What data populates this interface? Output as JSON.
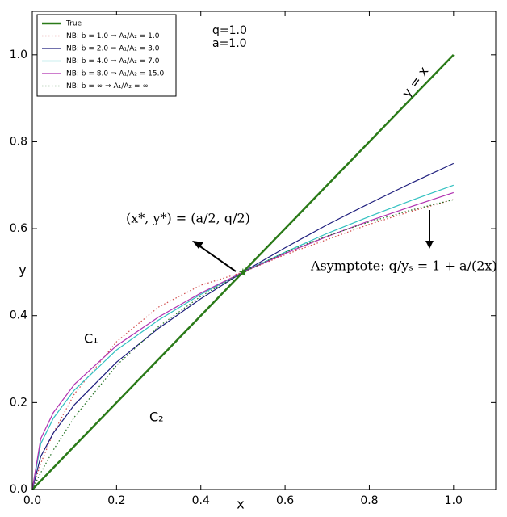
{
  "chart_data": {
    "type": "line",
    "x": [
      0,
      0.02,
      0.05,
      0.1,
      0.2,
      0.3,
      0.4,
      0.5,
      0.6,
      0.7,
      0.8,
      0.9,
      1.0
    ],
    "series": [
      {
        "name": "True",
        "color": "#2a7a18",
        "linestyle": "solid",
        "width": 2.5,
        "values": [
          0,
          0.02,
          0.05,
          0.1,
          0.2,
          0.3,
          0.4,
          0.5,
          0.6,
          0.7,
          0.8,
          0.9,
          1.0
        ]
      },
      {
        "name": "NB: b = 1.0 ⇒ A₁/A₂ = 1.0",
        "color": "#d04848",
        "linestyle": "dotted",
        "width": 1.2,
        "values": [
          0,
          0.06,
          0.13,
          0.22,
          0.34,
          0.42,
          0.47,
          0.5,
          0.54,
          0.575,
          0.61,
          0.64,
          0.667
        ]
      },
      {
        "name": "NB: b = 2.0 ⇒ A₁/A₂ = 3.0",
        "color": "#1c1c7c",
        "linestyle": "solid",
        "width": 1.2,
        "values": [
          0,
          0.076,
          0.13,
          0.195,
          0.293,
          0.371,
          0.439,
          0.5,
          0.556,
          0.609,
          0.658,
          0.705,
          0.75
        ]
      },
      {
        "name": "NB: b = 4.0 ⇒ A₁/A₂ = 7.0",
        "color": "#30c0c0",
        "linestyle": "solid",
        "width": 1.2,
        "values": [
          0,
          0.105,
          0.164,
          0.229,
          0.321,
          0.39,
          0.449,
          0.5,
          0.546,
          0.589,
          0.628,
          0.665,
          0.7
        ]
      },
      {
        "name": "NB: b = 8.0 ⇒ A₁/A₂ = 15.0",
        "color": "#b030b0",
        "linestyle": "solid",
        "width": 1.2,
        "values": [
          0,
          0.117,
          0.177,
          0.242,
          0.331,
          0.397,
          0.452,
          0.5,
          0.543,
          0.582,
          0.618,
          0.651,
          0.683
        ]
      },
      {
        "name": "NB: b = ∞ ⇒ A₁/A₂ = ∞",
        "color": "#207020",
        "linestyle": "dotted",
        "width": 1.2,
        "values": [
          0,
          0.0385,
          0.0909,
          0.1667,
          0.2857,
          0.375,
          0.4444,
          0.5,
          0.5455,
          0.5833,
          0.6154,
          0.6429,
          0.6667
        ]
      }
    ],
    "xlabel": "x",
    "ylabel": "y",
    "xlim": [
      0,
      1.1
    ],
    "ylim": [
      0,
      1.1
    ],
    "xticks": [
      {
        "value": 0,
        "label": "0.0"
      },
      0.2,
      0.4,
      0.6,
      0.8,
      {
        "value": 1,
        "label": "1.0"
      }
    ],
    "yticks": [
      {
        "value": 0,
        "label": "0.0"
      },
      0.2,
      0.4,
      0.6,
      0.8,
      {
        "value": 1,
        "label": "1.0"
      }
    ],
    "legend": "upper left",
    "marker": {
      "x": 0.5,
      "y": 0.5
    },
    "annotations": [
      "q=1.0",
      "a=1.0",
      "y = x",
      "(x*, y*) = (a/2, q/2)",
      "Asymptote: q/yₛ = 1 + a/(2x)",
      "C₁",
      "C₂"
    ]
  }
}
